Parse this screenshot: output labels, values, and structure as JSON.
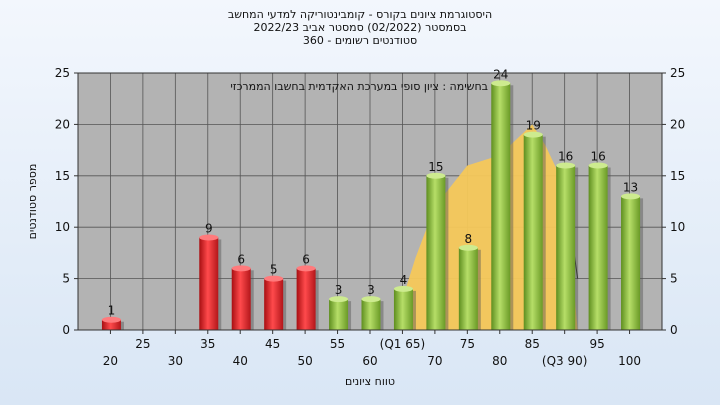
{
  "header": {
    "line1": "היסטוגרמת ציונים בקורס - קומבינטוריקה למדעי המחשב",
    "line2": "בסמסטר  (02/2022)  סמסטר אביב 2022/23",
    "line3": "סטודנטים רשומים - 360"
  },
  "chart_data": {
    "type": "bar",
    "annotation": "בחשימה : ציון סופי במערכת האקדמית בחשבו הממרכזי",
    "xlabel": "טווח ציונים",
    "ylabel": "מספר סטודנטים",
    "ylim": [
      0,
      25
    ],
    "yticks": [
      0,
      5,
      10,
      15,
      20,
      25
    ],
    "x_tick_labels": [
      {
        "x": 20,
        "label": "20"
      },
      {
        "x": 25,
        "label": "25"
      },
      {
        "x": 30,
        "label": "30"
      },
      {
        "x": 35,
        "label": "35"
      },
      {
        "x": 40,
        "label": "40"
      },
      {
        "x": 45,
        "label": "45"
      },
      {
        "x": 50,
        "label": "50"
      },
      {
        "x": 55,
        "label": "55"
      },
      {
        "x": 60,
        "label": "60"
      },
      {
        "x": 65,
        "label": "(Q1 65)"
      },
      {
        "x": 70,
        "label": "70"
      },
      {
        "x": 75,
        "label": "75"
      },
      {
        "x": 80,
        "label": "80"
      },
      {
        "x": 85,
        "label": "85"
      },
      {
        "x": 90,
        "label": "(Q3 90)"
      },
      {
        "x": 95,
        "label": "95"
      },
      {
        "x": 100,
        "label": "100"
      }
    ],
    "bars": [
      {
        "x": 20,
        "value": 1,
        "status": "fail"
      },
      {
        "x": 25,
        "value": 0,
        "status": "fail"
      },
      {
        "x": 30,
        "value": 0,
        "status": "fail"
      },
      {
        "x": 35,
        "value": 9,
        "status": "fail"
      },
      {
        "x": 40,
        "value": 6,
        "status": "fail"
      },
      {
        "x": 45,
        "value": 5,
        "status": "fail"
      },
      {
        "x": 50,
        "value": 6,
        "status": "fail"
      },
      {
        "x": 55,
        "value": 3,
        "status": "pass"
      },
      {
        "x": 60,
        "value": 3,
        "status": "pass"
      },
      {
        "x": 65,
        "value": 4,
        "status": "pass"
      },
      {
        "x": 70,
        "value": 15,
        "status": "pass"
      },
      {
        "x": 75,
        "value": 8,
        "status": "pass"
      },
      {
        "x": 80,
        "value": 24,
        "status": "pass"
      },
      {
        "x": 85,
        "value": 19,
        "status": "pass"
      },
      {
        "x": 90,
        "value": 16,
        "status": "pass"
      },
      {
        "x": 95,
        "value": 16,
        "status": "pass"
      },
      {
        "x": 100,
        "value": 13,
        "status": "pass"
      }
    ],
    "background_area": [
      {
        "x": 65,
        "y": 3
      },
      {
        "x": 67,
        "y": 7
      },
      {
        "x": 70,
        "y": 12
      },
      {
        "x": 75,
        "y": 16
      },
      {
        "x": 80,
        "y": 17
      },
      {
        "x": 85,
        "y": 20
      },
      {
        "x": 87,
        "y": 18
      },
      {
        "x": 90,
        "y": 14
      },
      {
        "x": 91,
        "y": 7
      },
      {
        "x": 92,
        "y": 0
      }
    ],
    "median_line": [
      {
        "x": 90,
        "y": 14
      },
      {
        "x": 92,
        "y": 5
      }
    ],
    "colors": {
      "plot_bg": "#b3b3b3",
      "fail_bar": "#e0262a",
      "pass_bar": "#8dbf3b",
      "area": "#f6c85a",
      "grid": "#555555"
    }
  }
}
